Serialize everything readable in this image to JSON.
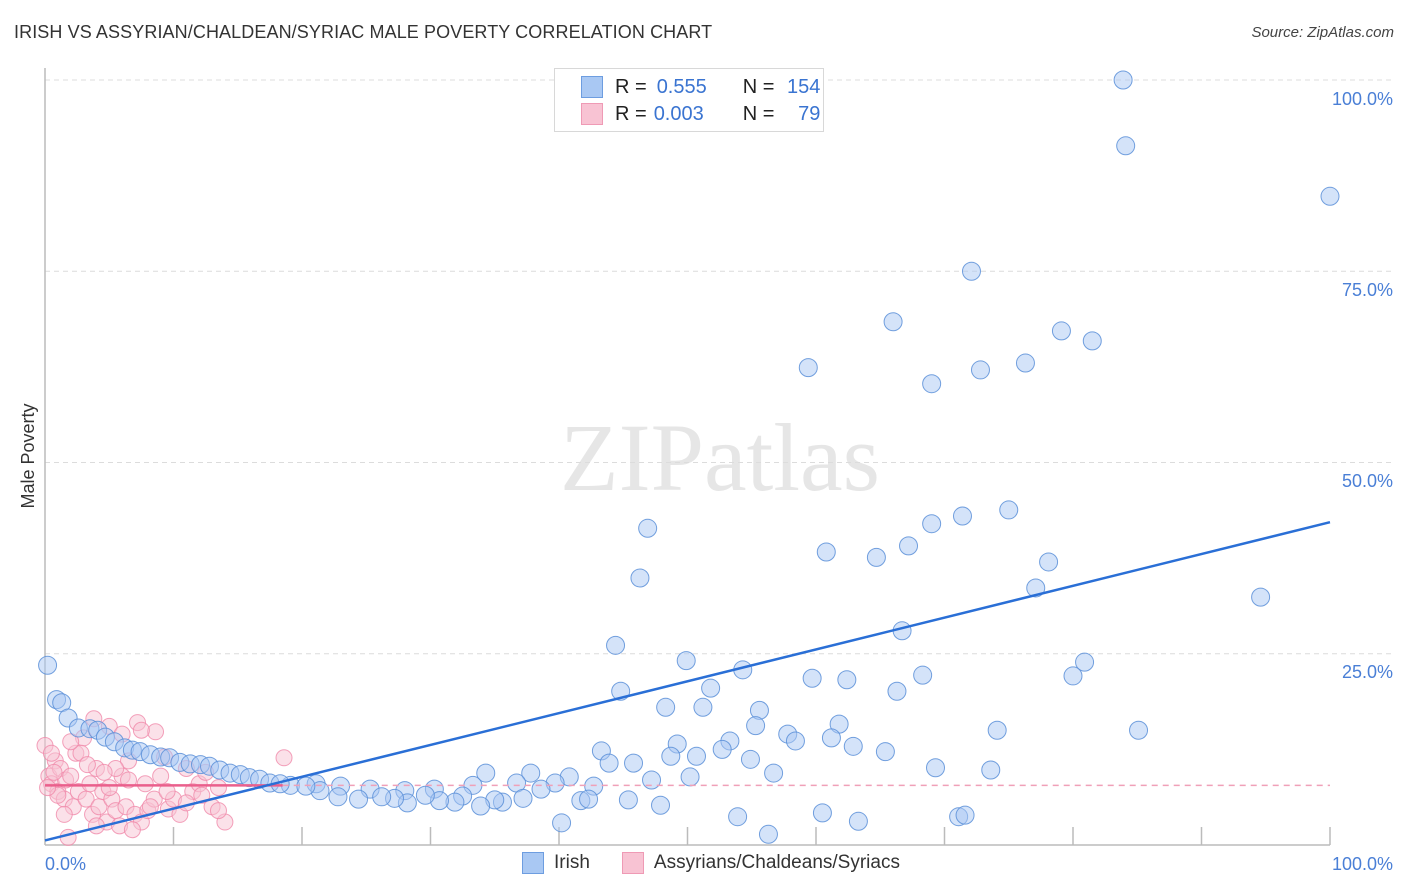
{
  "title": "IRISH VS ASSYRIAN/CHALDEAN/SYRIAC MALE POVERTY CORRELATION CHART",
  "source": "Source: ZipAtlas.com",
  "watermark": "ZIPatlas",
  "legend": {
    "rows": [
      {
        "r_label": "R =",
        "r_value": "0.555",
        "n_label": "N =",
        "n_value": "154",
        "color": "#a9c8f3"
      },
      {
        "r_label": "R =",
        "r_value": "0.003",
        "n_label": "N =",
        "n_value": "79",
        "color": "#f8c3d3"
      }
    ]
  },
  "chart_data": {
    "type": "scatter",
    "title": "IRISH VS ASSYRIAN/CHALDEAN/SYRIAC MALE POVERTY CORRELATION CHART",
    "xlabel": "",
    "ylabel": "Male Poverty",
    "xlim": [
      0,
      100
    ],
    "ylim": [
      0,
      100
    ],
    "x_tick_labels": [
      "0.0%",
      "100.0%"
    ],
    "y_tick_labels": [
      {
        "value": 25,
        "label": "25.0%"
      },
      {
        "value": 50,
        "label": "50.0%"
      },
      {
        "value": 75,
        "label": "75.0%"
      },
      {
        "value": 100,
        "label": "100.0%"
      }
    ],
    "grid": true,
    "legend_position": "bottom-center",
    "series": [
      {
        "name": "Irish",
        "color": "#5b8fd8",
        "fill": "#a9c8f3",
        "trend": {
          "x": [
            0,
            100
          ],
          "y": [
            0.6,
            42.2
          ]
        },
        "points": [
          [
            83.9,
            100
          ],
          [
            84.1,
            91.4
          ],
          [
            100,
            84.8
          ],
          [
            72.1,
            75
          ],
          [
            66,
            68.4
          ],
          [
            79.1,
            67.2
          ],
          [
            81.5,
            65.9
          ],
          [
            59.4,
            62.4
          ],
          [
            69,
            60.3
          ],
          [
            72.8,
            62.1
          ],
          [
            76.3,
            63
          ],
          [
            46.9,
            41.4
          ],
          [
            75,
            43.8
          ],
          [
            71.4,
            43
          ],
          [
            69,
            42
          ],
          [
            60.8,
            38.3
          ],
          [
            64.7,
            37.6
          ],
          [
            67.2,
            39.1
          ],
          [
            78.1,
            37
          ],
          [
            46.3,
            34.9
          ],
          [
            77.1,
            33.6
          ],
          [
            94.6,
            32.4
          ],
          [
            66.7,
            28
          ],
          [
            44.4,
            26.1
          ],
          [
            49.9,
            24.1
          ],
          [
            80.9,
            23.9
          ],
          [
            54.3,
            22.9
          ],
          [
            80,
            22.1
          ],
          [
            59.7,
            21.8
          ],
          [
            62.4,
            21.6
          ],
          [
            68.3,
            22.2
          ],
          [
            51.8,
            20.5
          ],
          [
            44.8,
            20.1
          ],
          [
            66.3,
            20.1
          ],
          [
            48.3,
            18
          ],
          [
            51.2,
            18
          ],
          [
            55.6,
            17.6
          ],
          [
            61.8,
            15.8
          ],
          [
            55.3,
            15.6
          ],
          [
            74.1,
            15
          ],
          [
            85.1,
            15
          ],
          [
            57.8,
            14.5
          ],
          [
            58.4,
            13.6
          ],
          [
            61.2,
            14
          ],
          [
            49.2,
            13.2
          ],
          [
            53.3,
            13.6
          ],
          [
            43.3,
            12.3
          ],
          [
            52.7,
            12.5
          ],
          [
            62.9,
            12.9
          ],
          [
            65.4,
            12.2
          ],
          [
            48.7,
            11.6
          ],
          [
            50.7,
            11.6
          ],
          [
            54.9,
            11.2
          ],
          [
            43.9,
            10.7
          ],
          [
            45.8,
            10.7
          ],
          [
            69.3,
            10.1
          ],
          [
            73.6,
            9.8
          ],
          [
            56.7,
            9.4
          ],
          [
            50.2,
            8.9
          ],
          [
            47.2,
            8.5
          ],
          [
            34.3,
            9.4
          ],
          [
            37.8,
            9.4
          ],
          [
            40.8,
            8.9
          ],
          [
            39.7,
            8.1
          ],
          [
            36.7,
            8.1
          ],
          [
            33.3,
            7.8
          ],
          [
            42.7,
            7.7
          ],
          [
            38.6,
            7.3
          ],
          [
            30.3,
            7.3
          ],
          [
            28,
            7.1
          ],
          [
            25.3,
            7.3
          ],
          [
            23,
            7.7
          ],
          [
            21.1,
            8
          ],
          [
            19.1,
            7.8
          ],
          [
            45.4,
            5.9
          ],
          [
            47.9,
            5.2
          ],
          [
            41.7,
            5.8
          ],
          [
            42.3,
            6
          ],
          [
            37.2,
            6.1
          ],
          [
            35.6,
            5.6
          ],
          [
            35,
            5.9
          ],
          [
            33.9,
            5.1
          ],
          [
            32.5,
            6.4
          ],
          [
            31.9,
            5.6
          ],
          [
            30.7,
            5.8
          ],
          [
            29.6,
            6.5
          ],
          [
            28.2,
            5.5
          ],
          [
            27.2,
            6.1
          ],
          [
            26.2,
            6.3
          ],
          [
            24.4,
            6
          ],
          [
            22.8,
            6.3
          ],
          [
            21.4,
            7.1
          ],
          [
            20.3,
            7.7
          ],
          [
            53.9,
            3.7
          ],
          [
            60.5,
            4.2
          ],
          [
            63.3,
            3.1
          ],
          [
            71.1,
            3.7
          ],
          [
            71.6,
            3.9
          ],
          [
            40.2,
            2.9
          ],
          [
            56.3,
            1.4
          ],
          [
            0.2,
            23.5
          ],
          [
            0.9,
            19
          ],
          [
            1.3,
            18.6
          ],
          [
            1.8,
            16.6
          ],
          [
            2.6,
            15.3
          ],
          [
            3.5,
            15.2
          ],
          [
            4.1,
            15
          ],
          [
            4.7,
            14.1
          ],
          [
            5.4,
            13.5
          ],
          [
            6.2,
            12.7
          ],
          [
            6.8,
            12.4
          ],
          [
            7.4,
            12.2
          ],
          [
            8.2,
            11.8
          ],
          [
            9,
            11.5
          ],
          [
            9.7,
            11.4
          ],
          [
            10.5,
            10.8
          ],
          [
            11.3,
            10.6
          ],
          [
            12.1,
            10.5
          ],
          [
            12.8,
            10.3
          ],
          [
            13.6,
            9.8
          ],
          [
            14.4,
            9.4
          ],
          [
            15.2,
            9.2
          ],
          [
            15.9,
            8.8
          ],
          [
            16.7,
            8.6
          ],
          [
            17.5,
            8.1
          ],
          [
            18.3,
            8
          ]
        ]
      },
      {
        "name": "Assyrians/Chaldeans/Syriacs",
        "color": "#f08aaa",
        "fill": "#f8c3d3",
        "trend": {
          "x": [
            0,
            18.5
          ],
          "y": [
            7.8,
            7.8
          ],
          "dashed_extension_to": 100
        },
        "points": [
          [
            0,
            13
          ],
          [
            0.3,
            9
          ],
          [
            0.5,
            8
          ],
          [
            0.8,
            11
          ],
          [
            1,
            7
          ],
          [
            1.2,
            10
          ],
          [
            1.5,
            6
          ],
          [
            1.6,
            8.5
          ],
          [
            2,
            9
          ],
          [
            2.2,
            5
          ],
          [
            2.4,
            12
          ],
          [
            2.6,
            7
          ],
          [
            3,
            14
          ],
          [
            3.2,
            6
          ],
          [
            3.5,
            8
          ],
          [
            3.7,
            4
          ],
          [
            4,
            10
          ],
          [
            4.2,
            5
          ],
          [
            4.5,
            7
          ],
          [
            4.8,
            3
          ],
          [
            5,
            15.5
          ],
          [
            5.2,
            6
          ],
          [
            5.5,
            4.5
          ],
          [
            5.8,
            2.5
          ],
          [
            6,
            9
          ],
          [
            6.3,
            5
          ],
          [
            6.5,
            11
          ],
          [
            7,
            4
          ],
          [
            7.2,
            16
          ],
          [
            7.5,
            3
          ],
          [
            7.8,
            8
          ],
          [
            8,
            4.5
          ],
          [
            8.5,
            6
          ],
          [
            5.5,
            10
          ],
          [
            6.8,
            2
          ],
          [
            9,
            9
          ],
          [
            9.3,
            11.5
          ],
          [
            9.6,
            4.7
          ],
          [
            10,
            6
          ],
          [
            10.5,
            4
          ],
          [
            11,
            10
          ],
          [
            11.5,
            7
          ],
          [
            12,
            8
          ],
          [
            12.5,
            9.5
          ],
          [
            13,
            5
          ],
          [
            13.5,
            7.5
          ],
          [
            14,
            3
          ],
          [
            1.8,
            1
          ],
          [
            18.6,
            11.4
          ],
          [
            3.8,
            16.5
          ],
          [
            2.8,
            12
          ],
          [
            1,
            6.5
          ],
          [
            0.5,
            12
          ],
          [
            4.6,
            9.5
          ],
          [
            6,
            14.5
          ],
          [
            8.6,
            14.8
          ],
          [
            7.5,
            15
          ],
          [
            2,
            13.5
          ],
          [
            9.5,
            7
          ],
          [
            11,
            5.5
          ],
          [
            13.5,
            4.5
          ],
          [
            1.5,
            4
          ],
          [
            0.7,
            9.5
          ],
          [
            3.3,
            10.5
          ],
          [
            5,
            7.5
          ],
          [
            6.5,
            8.5
          ],
          [
            4,
            2.5
          ],
          [
            8.2,
            5
          ],
          [
            12.2,
            6.5
          ],
          [
            0.2,
            7.5
          ]
        ]
      }
    ]
  }
}
